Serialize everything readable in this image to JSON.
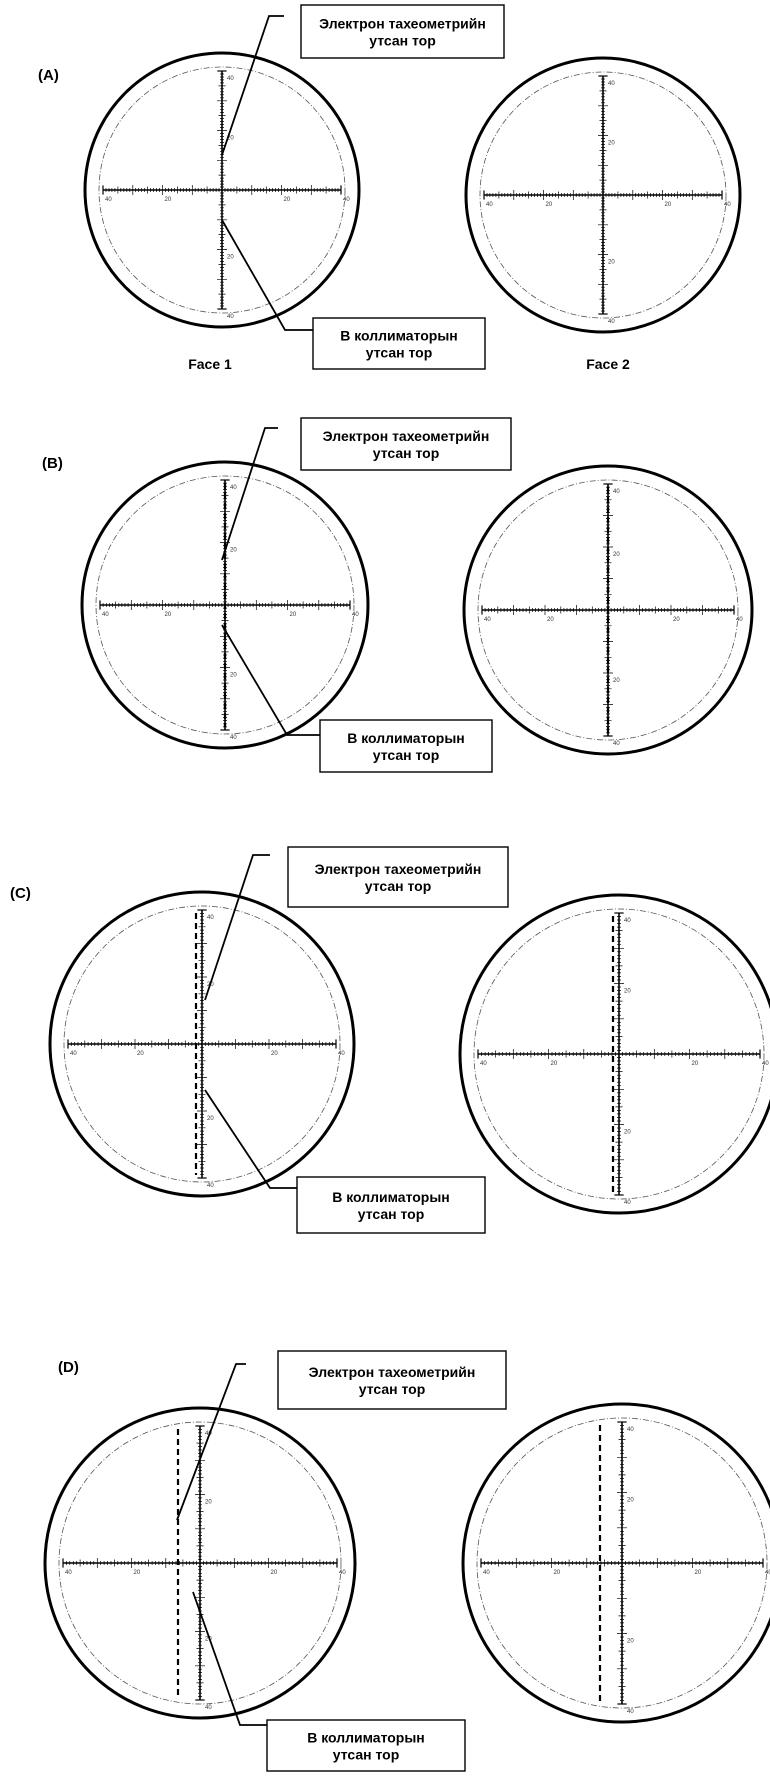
{
  "labels": {
    "tacheo_line1": "Электрон тахеометрийн",
    "tacheo_line2": "утсан тор",
    "collim_line1": "В коллиматорын",
    "collim_line2": "утсан тор",
    "face1": "Face 1",
    "face2": "Face 2"
  },
  "panels": [
    {
      "id": "A",
      "letter": "(A)"
    },
    {
      "id": "B",
      "letter": "(B)"
    },
    {
      "id": "C",
      "letter": "(C)"
    },
    {
      "id": "D",
      "letter": "(D)"
    }
  ],
  "scale_labels": [
    "40",
    "20",
    "20",
    "40"
  ],
  "colors": {
    "ink": "#000000",
    "inner_ring": "#555555",
    "box_border": "#000000"
  }
}
